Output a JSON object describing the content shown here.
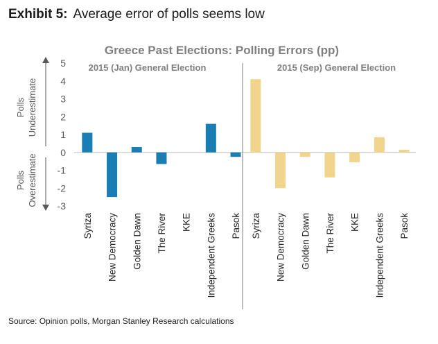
{
  "exhibit": {
    "label": "Exhibit 5:",
    "title": "Average error of polls seems low"
  },
  "source": "Source: Opinion polls, Morgan Stanley Research calculations",
  "colors": {
    "jan": "#1a7db3",
    "sep": "#f2d58c",
    "title_gray": "#7f7f7f",
    "divider": "#7f7f7f",
    "axis": "#bfbfbf"
  },
  "chart_data": {
    "type": "bar",
    "title": "Greece Past Elections: Polling Errors (pp)",
    "ylim": [
      -3,
      5
    ],
    "yticks": [
      "-3",
      "-2",
      "-1",
      "0",
      "1",
      "2",
      "3",
      "4",
      "5"
    ],
    "side_labels": {
      "top": [
        "Polls",
        "Underestimate"
      ],
      "bottom": [
        "Polls",
        "Overestimate"
      ]
    },
    "grid": false,
    "categories": [
      "Syriza",
      "New Democracy",
      "Golden Dawn",
      "The River",
      "KKE",
      "Independent Greeks",
      "Pasok"
    ],
    "series": [
      {
        "name": "2015 (Jan) General Election",
        "values": [
          1.1,
          -2.5,
          0.3,
          -0.65,
          0.0,
          1.6,
          -0.25
        ]
      },
      {
        "name": "2015 (Sep) General Election",
        "values": [
          4.1,
          -2.0,
          -0.25,
          -1.4,
          -0.55,
          0.85,
          0.15
        ]
      }
    ]
  }
}
